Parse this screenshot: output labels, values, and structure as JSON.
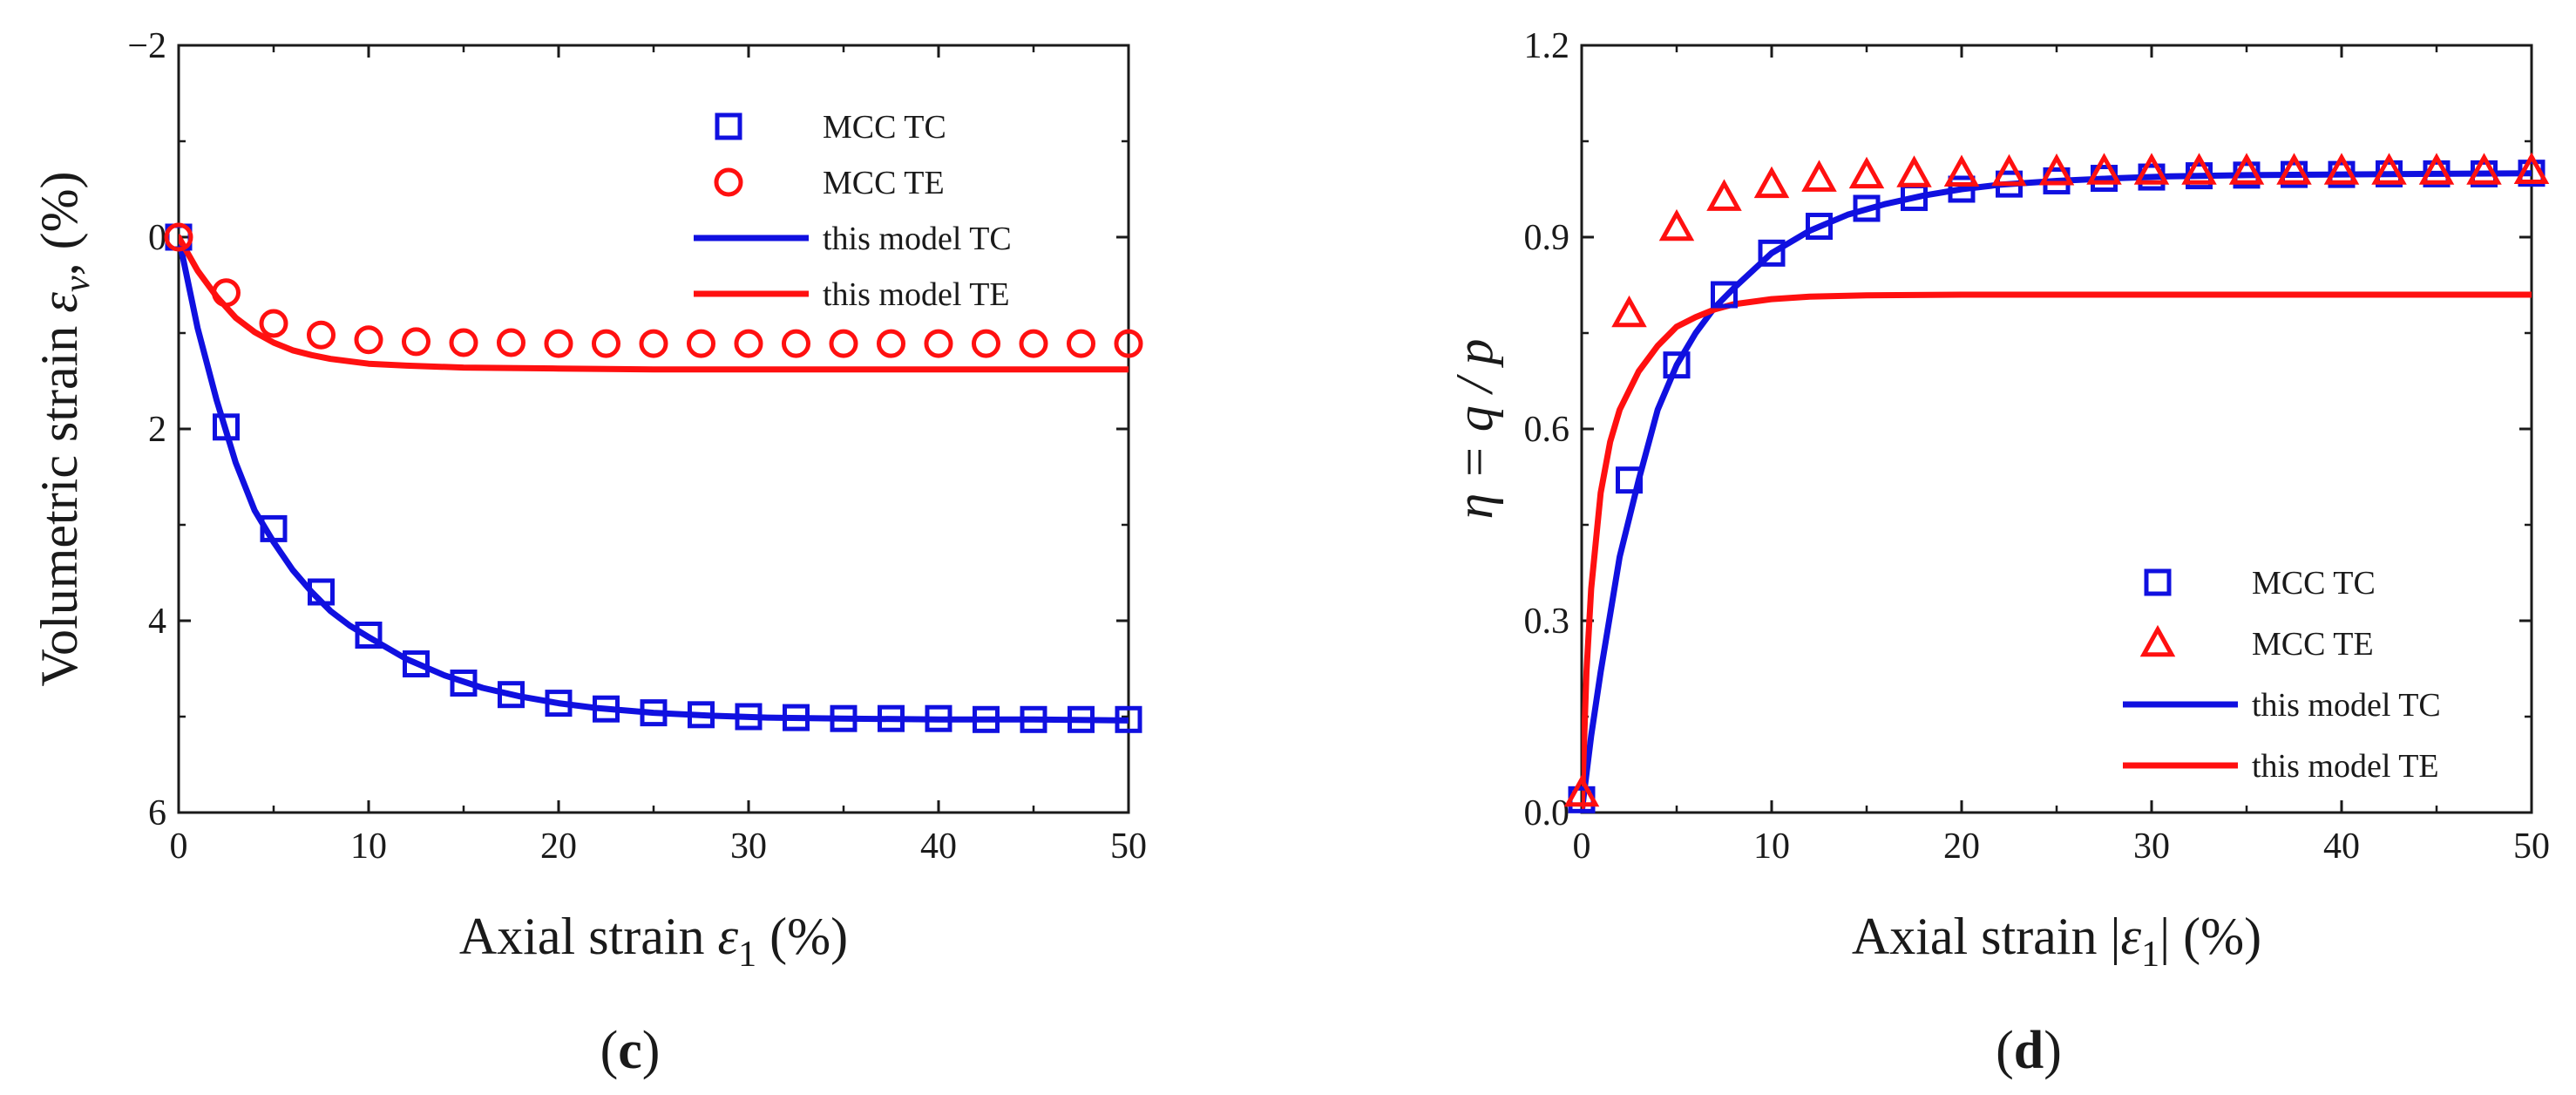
{
  "chart_data": [
    {
      "type": "line",
      "panel": "c",
      "xlabel": "Axial strain",
      "xsym": "ε",
      "xsub": "1",
      "xunit": " (%)",
      "ylabel": "Volumetric strain",
      "ysym": "ε",
      "ysub": "v",
      "yunit": ", (%)",
      "xlim": [
        0,
        50
      ],
      "ylim": [
        6,
        -2
      ],
      "y_inverted": true,
      "xticks": [
        0,
        10,
        20,
        30,
        40,
        50
      ],
      "xtick_labels": [
        "0",
        "10",
        "20",
        "30",
        "40",
        "50"
      ],
      "yticks": [
        -2,
        0,
        2,
        4,
        6
      ],
      "ytick_labels": [
        "−2",
        "0",
        "2",
        "4",
        "6"
      ],
      "grid": false,
      "legend_position": "top-right",
      "series": [
        {
          "name": "MCC TC",
          "kind": "markers",
          "marker": "square",
          "color": "#1010e0",
          "x": [
            0,
            2.5,
            5,
            7.5,
            10,
            12.5,
            15,
            17.5,
            20,
            22.5,
            25,
            27.5,
            30,
            32.5,
            35,
            37.5,
            40,
            42.5,
            45,
            47.5,
            50
          ],
          "y": [
            0,
            1.98,
            3.04,
            3.7,
            4.15,
            4.45,
            4.65,
            4.77,
            4.86,
            4.92,
            4.96,
            4.98,
            5.0,
            5.01,
            5.02,
            5.02,
            5.02,
            5.03,
            5.03,
            5.03,
            5.03
          ]
        },
        {
          "name": "MCC TE",
          "kind": "markers",
          "marker": "circle",
          "color": "#ff1010",
          "x": [
            0,
            2.5,
            5,
            7.5,
            10,
            12.5,
            15,
            17.5,
            20,
            22.5,
            25,
            27.5,
            30,
            32.5,
            35,
            37.5,
            40,
            42.5,
            45,
            47.5,
            50
          ],
          "y": [
            0,
            0.58,
            0.9,
            1.02,
            1.07,
            1.09,
            1.1,
            1.1,
            1.11,
            1.11,
            1.11,
            1.11,
            1.11,
            1.11,
            1.11,
            1.11,
            1.11,
            1.11,
            1.11,
            1.11,
            1.11
          ]
        },
        {
          "name": "this model TC",
          "kind": "line",
          "color": "#1010e0",
          "x": [
            0,
            1,
            2,
            3,
            4,
            5,
            6,
            7,
            8,
            9,
            10,
            12,
            14,
            16,
            18,
            20,
            22,
            25,
            28,
            31,
            35,
            40,
            45,
            50
          ],
          "y": [
            0,
            0.95,
            1.7,
            2.35,
            2.85,
            3.18,
            3.47,
            3.7,
            3.9,
            4.05,
            4.17,
            4.4,
            4.57,
            4.7,
            4.79,
            4.86,
            4.91,
            4.96,
            4.99,
            5.01,
            5.02,
            5.03,
            5.03,
            5.04
          ]
        },
        {
          "name": "this model TE",
          "kind": "line",
          "color": "#ff1010",
          "x": [
            0,
            1,
            2,
            3,
            4,
            5,
            6,
            7,
            8,
            10,
            12,
            15,
            20,
            25,
            30,
            40,
            50
          ],
          "y": [
            0,
            0.35,
            0.62,
            0.84,
            0.99,
            1.1,
            1.18,
            1.23,
            1.27,
            1.32,
            1.34,
            1.36,
            1.37,
            1.38,
            1.38,
            1.38,
            1.38
          ]
        }
      ]
    },
    {
      "type": "line",
      "panel": "d",
      "xlabel": "Axial strain",
      "xsym": "ε",
      "xsub": "1",
      "xunit": " (%)",
      "ylabel": "η = q / p",
      "xlim": [
        0,
        50
      ],
      "ylim": [
        0,
        1.2
      ],
      "xticks": [
        0,
        10,
        20,
        30,
        40,
        50
      ],
      "xtick_labels": [
        "0",
        "10",
        "20",
        "30",
        "40",
        "50"
      ],
      "yticks": [
        0,
        0.3,
        0.6,
        0.9,
        1.2
      ],
      "ytick_labels": [
        "0.0",
        "0.3",
        "0.6",
        "0.9",
        "1.2"
      ],
      "grid": false,
      "legend_position": "bottom-right",
      "series": [
        {
          "name": "MCC TC",
          "kind": "markers",
          "marker": "square",
          "color": "#1010e0",
          "x": [
            0,
            2.5,
            5,
            7.5,
            10,
            12.5,
            15,
            17.5,
            20,
            22.5,
            25,
            27.5,
            30,
            32.5,
            35,
            37.5,
            40,
            42.5,
            45,
            47.5,
            50
          ],
          "y": [
            0.02,
            0.52,
            0.7,
            0.81,
            0.875,
            0.917,
            0.945,
            0.962,
            0.975,
            0.983,
            0.988,
            0.992,
            0.994,
            0.996,
            0.997,
            0.998,
            0.998,
            0.999,
            0.999,
            0.999,
            1.0
          ]
        },
        {
          "name": "MCC TE",
          "kind": "markers",
          "marker": "triangle",
          "color": "#ff1010",
          "x": [
            0,
            2.5,
            5,
            7.5,
            10,
            12.5,
            15,
            17.5,
            20,
            22.5,
            25,
            27.5,
            30,
            32.5,
            35,
            37.5,
            40,
            42.5,
            45,
            47.5,
            50
          ],
          "y": [
            0.03,
            0.78,
            0.915,
            0.962,
            0.982,
            0.992,
            0.997,
            0.999,
            1.0,
            1.001,
            1.002,
            1.003,
            1.003,
            1.003,
            1.003,
            1.003,
            1.003,
            1.003,
            1.003,
            1.003,
            1.004
          ]
        },
        {
          "name": "this model TC",
          "kind": "line",
          "color": "#1010e0",
          "x": [
            0,
            0.5,
            1,
            2,
            3,
            4,
            5,
            6,
            7,
            8,
            10,
            12,
            14,
            16,
            18,
            20,
            22,
            25,
            28,
            31,
            35,
            40,
            45,
            50
          ],
          "y": [
            0,
            0.12,
            0.22,
            0.4,
            0.52,
            0.63,
            0.7,
            0.75,
            0.79,
            0.82,
            0.875,
            0.91,
            0.935,
            0.952,
            0.965,
            0.975,
            0.982,
            0.988,
            0.992,
            0.995,
            0.997,
            0.998,
            0.999,
            1.0
          ]
        },
        {
          "name": "this model TE",
          "kind": "line",
          "color": "#ff1010",
          "x": [
            0,
            0.25,
            0.5,
            1,
            1.5,
            2,
            3,
            4,
            5,
            6,
            7,
            8,
            10,
            12,
            15,
            20,
            30,
            40,
            50
          ],
          "y": [
            0,
            0.22,
            0.35,
            0.5,
            0.58,
            0.63,
            0.69,
            0.73,
            0.76,
            0.775,
            0.787,
            0.795,
            0.803,
            0.807,
            0.809,
            0.81,
            0.81,
            0.81,
            0.81
          ]
        }
      ]
    }
  ],
  "figure": {
    "panel_c_label": "c",
    "panel_d_label": "d"
  }
}
